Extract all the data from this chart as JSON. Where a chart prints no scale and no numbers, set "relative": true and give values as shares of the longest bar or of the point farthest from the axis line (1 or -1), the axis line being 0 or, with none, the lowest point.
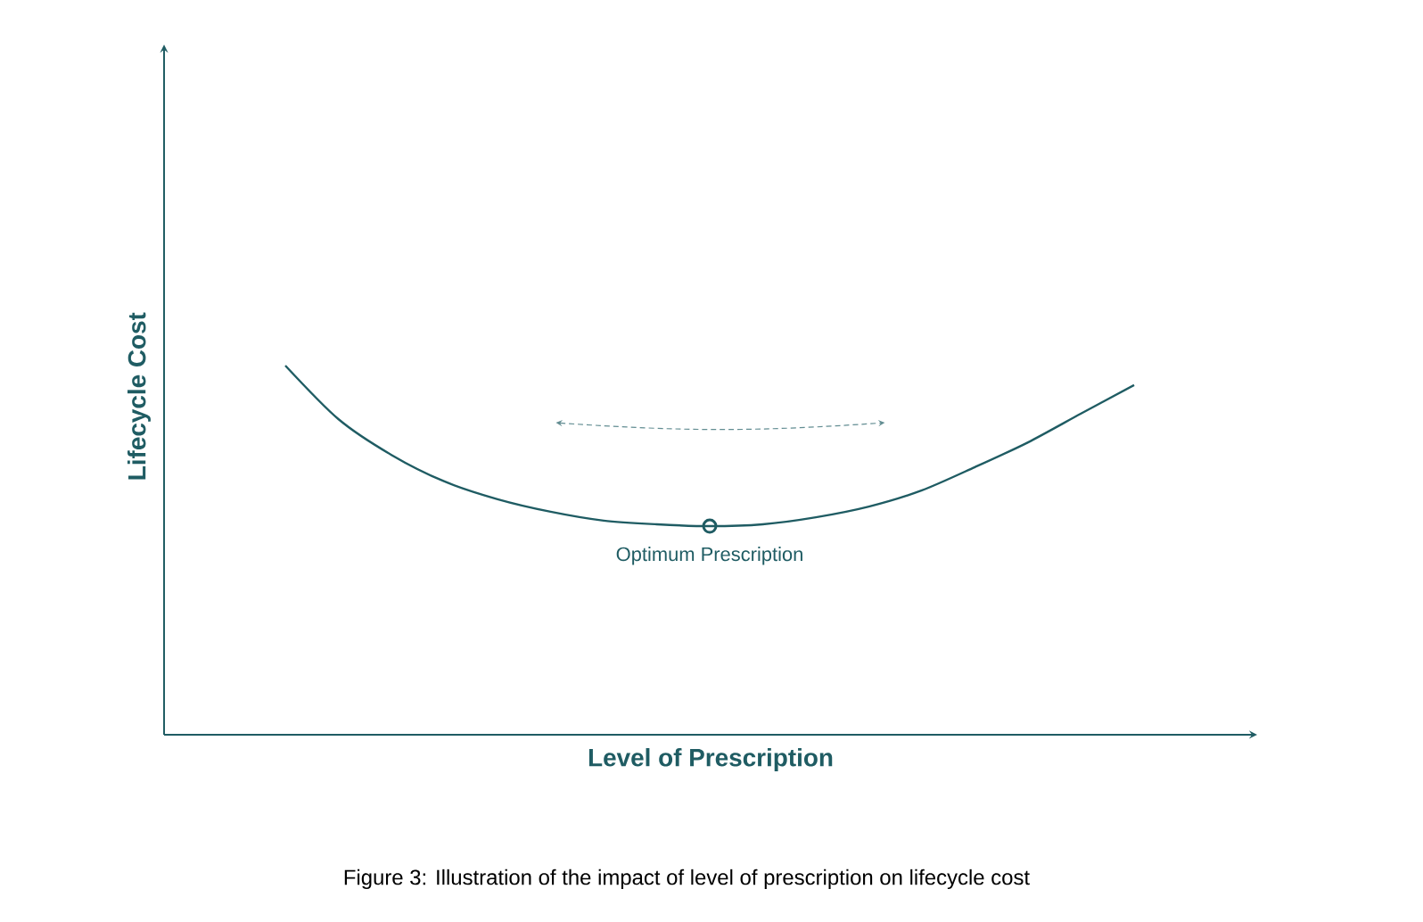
{
  "chart_data": {
    "type": "line",
    "relative": true,
    "color": "#1f5c63",
    "xlabel": "Level of Prescription",
    "ylabel": "Lifecycle Cost",
    "categories": [
      null,
      null,
      null,
      null,
      null,
      null,
      null,
      null,
      null,
      null,
      null,
      null,
      null,
      null,
      null,
      null,
      null
    ],
    "values": [
      1,
      0.855,
      0.758,
      0.686,
      0.638,
      0.604,
      0.58,
      0.57,
      0.565,
      0.57,
      0.589,
      0.618,
      0.662,
      0.725,
      0.792,
      0.87,
      0.947
    ],
    "annotations": [
      {
        "text": "Optimum Prescription",
        "y": 0.565
      },
      "Figure 3: Illustration of the impact of level of prescription on lifecycle cost"
    ]
  }
}
